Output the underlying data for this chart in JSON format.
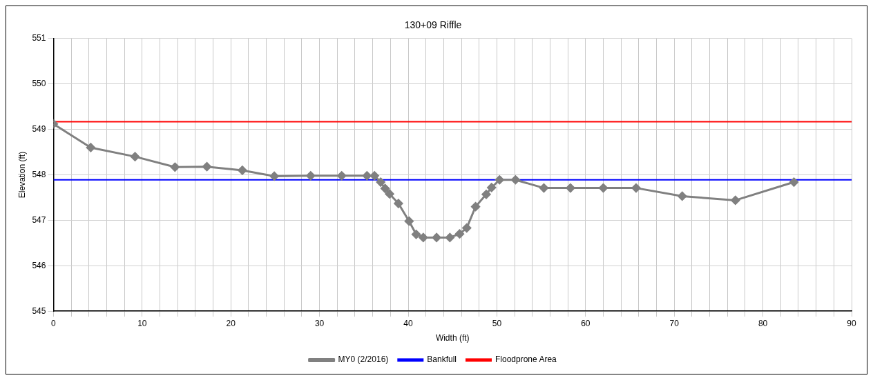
{
  "chart_data": {
    "type": "line",
    "title": "130+09 Riffle",
    "xlabel": "Width (ft)",
    "ylabel": "Elevation (ft)",
    "xlim": [
      0,
      90
    ],
    "ylim": [
      545,
      551
    ],
    "xticks": [
      0,
      {
        "value": 2,
        "label": null
      },
      {
        "value": 4,
        "label": null
      },
      {
        "value": 6,
        "label": null
      },
      {
        "value": 8,
        "label": null
      },
      10,
      {
        "value": 12,
        "label": null
      },
      {
        "value": 14,
        "label": null
      },
      {
        "value": 16,
        "label": null
      },
      {
        "value": 18,
        "label": null
      },
      20,
      {
        "value": 22,
        "label": null
      },
      {
        "value": 24,
        "label": null
      },
      {
        "value": 26,
        "label": null
      },
      {
        "value": 28,
        "label": null
      },
      30,
      {
        "value": 32,
        "label": null
      },
      {
        "value": 34,
        "label": null
      },
      {
        "value": 36,
        "label": null
      },
      {
        "value": 38,
        "label": null
      },
      40,
      {
        "value": 42,
        "label": null
      },
      {
        "value": 44,
        "label": null
      },
      {
        "value": 46,
        "label": null
      },
      {
        "value": 48,
        "label": null
      },
      50,
      {
        "value": 52,
        "label": null
      },
      {
        "value": 54,
        "label": null
      },
      {
        "value": 56,
        "label": null
      },
      {
        "value": 58,
        "label": null
      },
      60,
      {
        "value": 62,
        "label": null
      },
      {
        "value": 64,
        "label": null
      },
      {
        "value": 66,
        "label": null
      },
      {
        "value": 68,
        "label": null
      },
      70,
      {
        "value": 72,
        "label": null
      },
      {
        "value": 74,
        "label": null
      },
      {
        "value": 76,
        "label": null
      },
      {
        "value": 78,
        "label": null
      },
      80,
      {
        "value": 82,
        "label": null
      },
      {
        "value": 84,
        "label": null
      },
      {
        "value": 86,
        "label": null
      },
      {
        "value": 88,
        "label": null
      },
      90
    ],
    "yticks": [
      545,
      546,
      547,
      548,
      549,
      550,
      551
    ],
    "grid": true,
    "legend": "bottom",
    "marker": "diamond",
    "line_style": "solid",
    "series": [
      {
        "name": "MY0 (2/2016)",
        "color": "#808080",
        "x": [
          0,
          4.2,
          9.2,
          13.7,
          17.3,
          21.3,
          24.9,
          29.0,
          32.5,
          35.35,
          36.2,
          36.9,
          37.4,
          37.9,
          38.9,
          40.1,
          40.9,
          41.7,
          43.2,
          44.7,
          45.8,
          46.6,
          47.6,
          48.8,
          49.4,
          50.3,
          52.1,
          55.3,
          58.3,
          62.0,
          65.7,
          70.9,
          76.9,
          83.5
        ],
        "values": [
          549.12,
          548.6,
          548.4,
          548.17,
          548.18,
          548.1,
          547.97,
          547.98,
          547.98,
          547.98,
          547.98,
          547.84,
          547.7,
          547.58,
          547.37,
          546.98,
          546.69,
          546.62,
          546.62,
          546.62,
          546.7,
          546.83,
          547.3,
          547.57,
          547.72,
          547.89,
          547.89,
          547.71,
          547.71,
          547.71,
          547.71,
          547.53,
          547.44,
          547.84
        ]
      }
    ],
    "ref_lines": [
      {
        "axis": "y",
        "value": 547.89,
        "label": "Bankfull",
        "color": "#0000ff"
      },
      {
        "axis": "y",
        "value": 549.17,
        "label": "Floodprone Area",
        "color": "#ff0000"
      }
    ]
  }
}
